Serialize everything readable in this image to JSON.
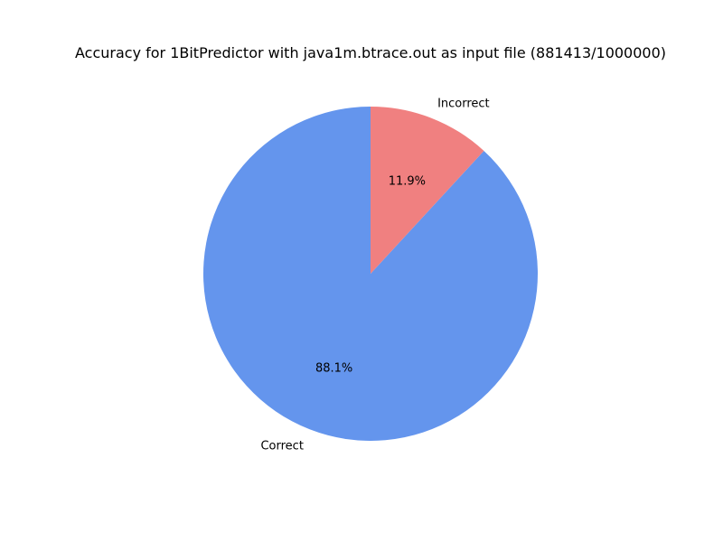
{
  "chart_data": {
    "type": "pie",
    "title": "Accuracy for 1BitPredictor with java1m.btrace.out as input file (881413/1000000)",
    "categories": [
      "Correct",
      "Incorrect"
    ],
    "values": [
      881413,
      118587
    ],
    "percent_labels": [
      "88.1%",
      "11.9%"
    ],
    "colors": [
      "#6495ed",
      "#f08080"
    ],
    "start_angle_deg": 90,
    "direction": "counterclockwise",
    "legend": "none"
  }
}
